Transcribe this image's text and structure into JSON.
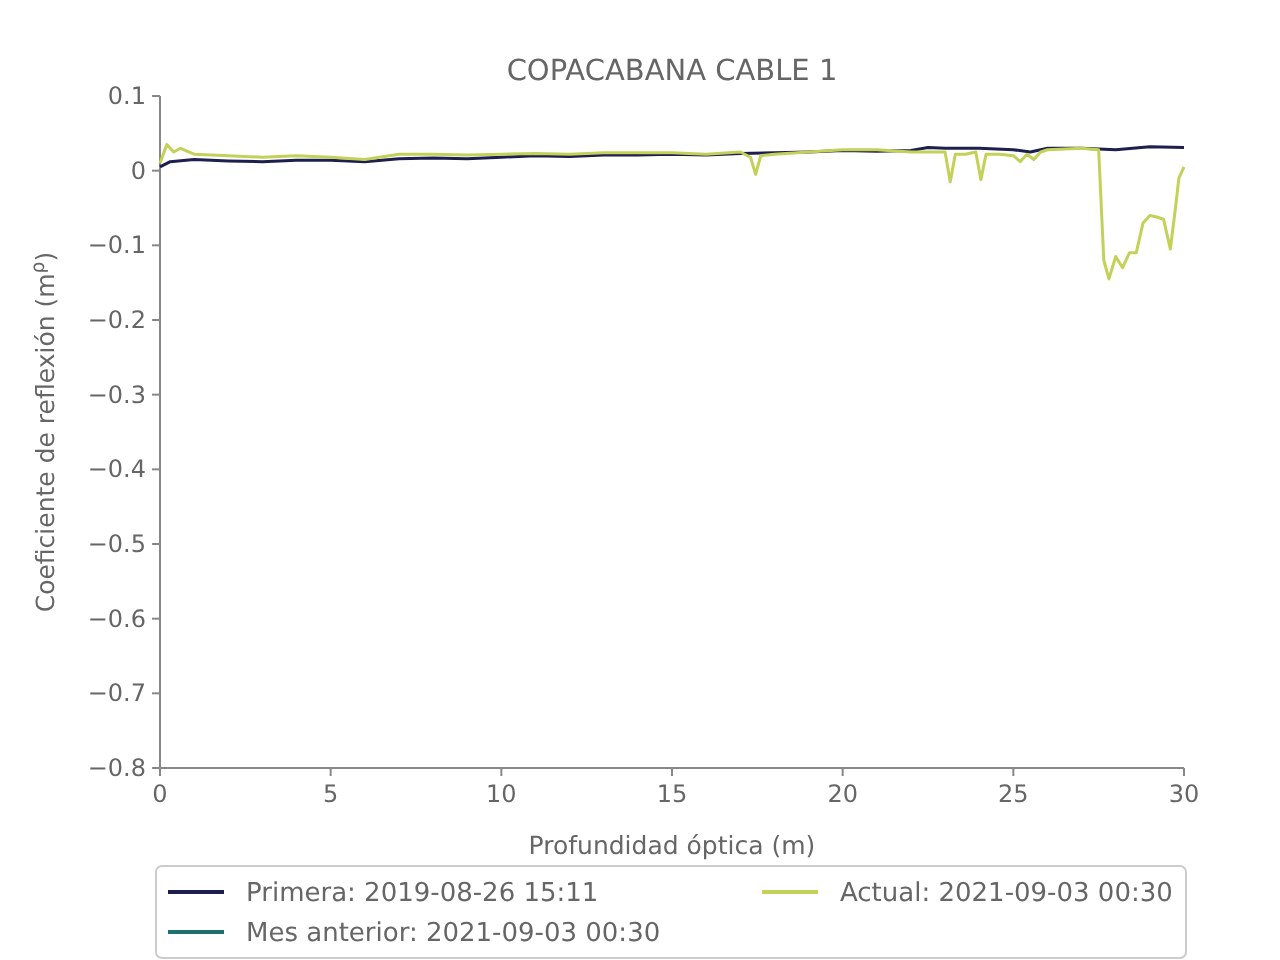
{
  "chart_data": {
    "type": "line",
    "title": "COPACABANA CABLE 1",
    "xlabel": "Profundidad óptica (m)",
    "ylabel": "Coeficiente de reflexión (m$^{ρ}$)",
    "xlim": [
      0,
      30
    ],
    "xticks": [
      0,
      5,
      10,
      15,
      20,
      25,
      30
    ],
    "ylim": [
      -0.8,
      0.1
    ],
    "yticks": [
      {
        "value": -0.8,
        "label": "−0.8"
      },
      {
        "value": -0.7,
        "label": "−0.7"
      },
      {
        "value": -0.6,
        "label": "−0.6"
      },
      {
        "value": -0.5,
        "label": "−0.5"
      },
      {
        "value": -0.4,
        "label": "−0.4"
      },
      {
        "value": -0.3,
        "label": "−0.3"
      },
      {
        "value": -0.2,
        "label": "−0.2"
      },
      {
        "value": -0.1,
        "label": "−0.1"
      },
      0.0,
      0.1
    ],
    "grid": false,
    "legend": "bottom",
    "line_style": "solid",
    "marker": "none",
    "series": [
      {
        "name": "Primera: 2019-08-26 15:11",
        "color": "#1d1f4e",
        "x": [
          0,
          0.3,
          1,
          2,
          3,
          4,
          5,
          6,
          7,
          8,
          9,
          10,
          11,
          12,
          13,
          14,
          15,
          16,
          17,
          18,
          19,
          20,
          21,
          22,
          22.5,
          23,
          24,
          25,
          25.5,
          26,
          27,
          28,
          29,
          30
        ],
        "values": [
          0.005,
          0.012,
          0.015,
          0.013,
          0.012,
          0.014,
          0.014,
          0.012,
          0.016,
          0.017,
          0.016,
          0.018,
          0.02,
          0.019,
          0.021,
          0.021,
          0.022,
          0.021,
          0.023,
          0.024,
          0.025,
          0.027,
          0.026,
          0.027,
          0.031,
          0.03,
          0.03,
          0.028,
          0.025,
          0.03,
          0.03,
          0.028,
          0.032,
          0.031
        ]
      },
      {
        "name": "Mes anterior: 2021-09-03 00:30",
        "color": "#1f6f6f"
      },
      {
        "name": "Actual: 2021-09-03 00:30",
        "color": "#c3d158",
        "x": [
          0,
          0.2,
          0.4,
          0.6,
          1,
          2,
          3,
          4,
          5,
          6,
          7,
          8,
          9,
          10,
          11,
          12,
          13,
          14,
          15,
          16,
          17,
          17.3,
          17.45,
          17.6,
          18,
          19,
          20,
          21,
          22,
          23,
          23.15,
          23.3,
          23.6,
          23.9,
          24.05,
          24.2,
          24.6,
          25,
          25.2,
          25.4,
          25.6,
          25.8,
          26,
          27,
          27.5,
          27.65,
          27.8,
          28,
          28.2,
          28.4,
          28.6,
          28.8,
          29,
          29.2,
          29.4,
          29.6,
          29.75,
          29.85,
          30
        ],
        "values": [
          0.01,
          0.035,
          0.025,
          0.03,
          0.022,
          0.02,
          0.018,
          0.02,
          0.018,
          0.015,
          0.022,
          0.022,
          0.021,
          0.022,
          0.023,
          0.022,
          0.024,
          0.024,
          0.024,
          0.022,
          0.025,
          0.018,
          -0.005,
          0.02,
          0.022,
          0.025,
          0.028,
          0.028,
          0.025,
          0.025,
          -0.015,
          0.022,
          0.022,
          0.025,
          -0.012,
          0.022,
          0.022,
          0.02,
          0.012,
          0.022,
          0.015,
          0.025,
          0.028,
          0.03,
          0.028,
          -0.12,
          -0.145,
          -0.115,
          -0.13,
          -0.11,
          -0.11,
          -0.07,
          -0.06,
          -0.062,
          -0.065,
          -0.105,
          -0.05,
          -0.01,
          0.005
        ]
      }
    ]
  }
}
